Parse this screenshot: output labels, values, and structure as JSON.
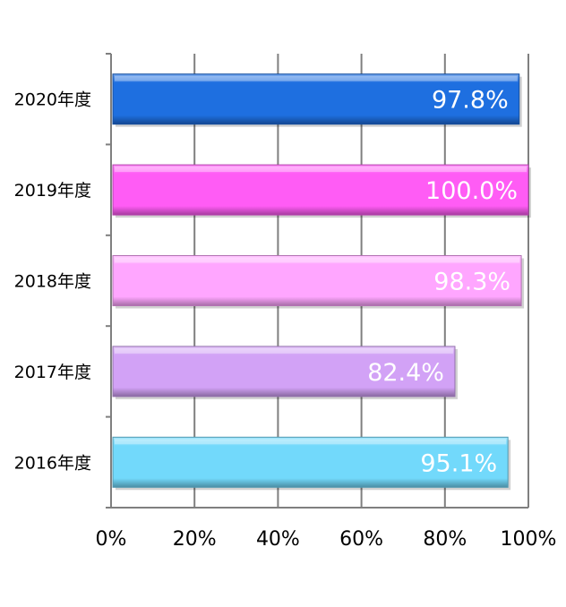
{
  "chart_data": {
    "type": "bar",
    "orientation": "horizontal",
    "categories": [
      "2020年度",
      "2019年度",
      "2018年度",
      "2017年度",
      "2016年度"
    ],
    "values": [
      97.8,
      100.0,
      98.3,
      82.4,
      95.1
    ],
    "data_labels": [
      "97.8%",
      "100.0%",
      "98.3%",
      "82.4%",
      "95.1%"
    ],
    "bar_colors": [
      "#1e6fe0",
      "#ff5cf5",
      "#ffa6ff",
      "#d2a2f6",
      "#72d9fb"
    ],
    "xlim": [
      0,
      100
    ],
    "x_ticks": [
      "0%",
      "20%",
      "40%",
      "60%",
      "80%",
      "100%"
    ],
    "grid": true,
    "title": "",
    "xlabel": "",
    "ylabel": ""
  }
}
